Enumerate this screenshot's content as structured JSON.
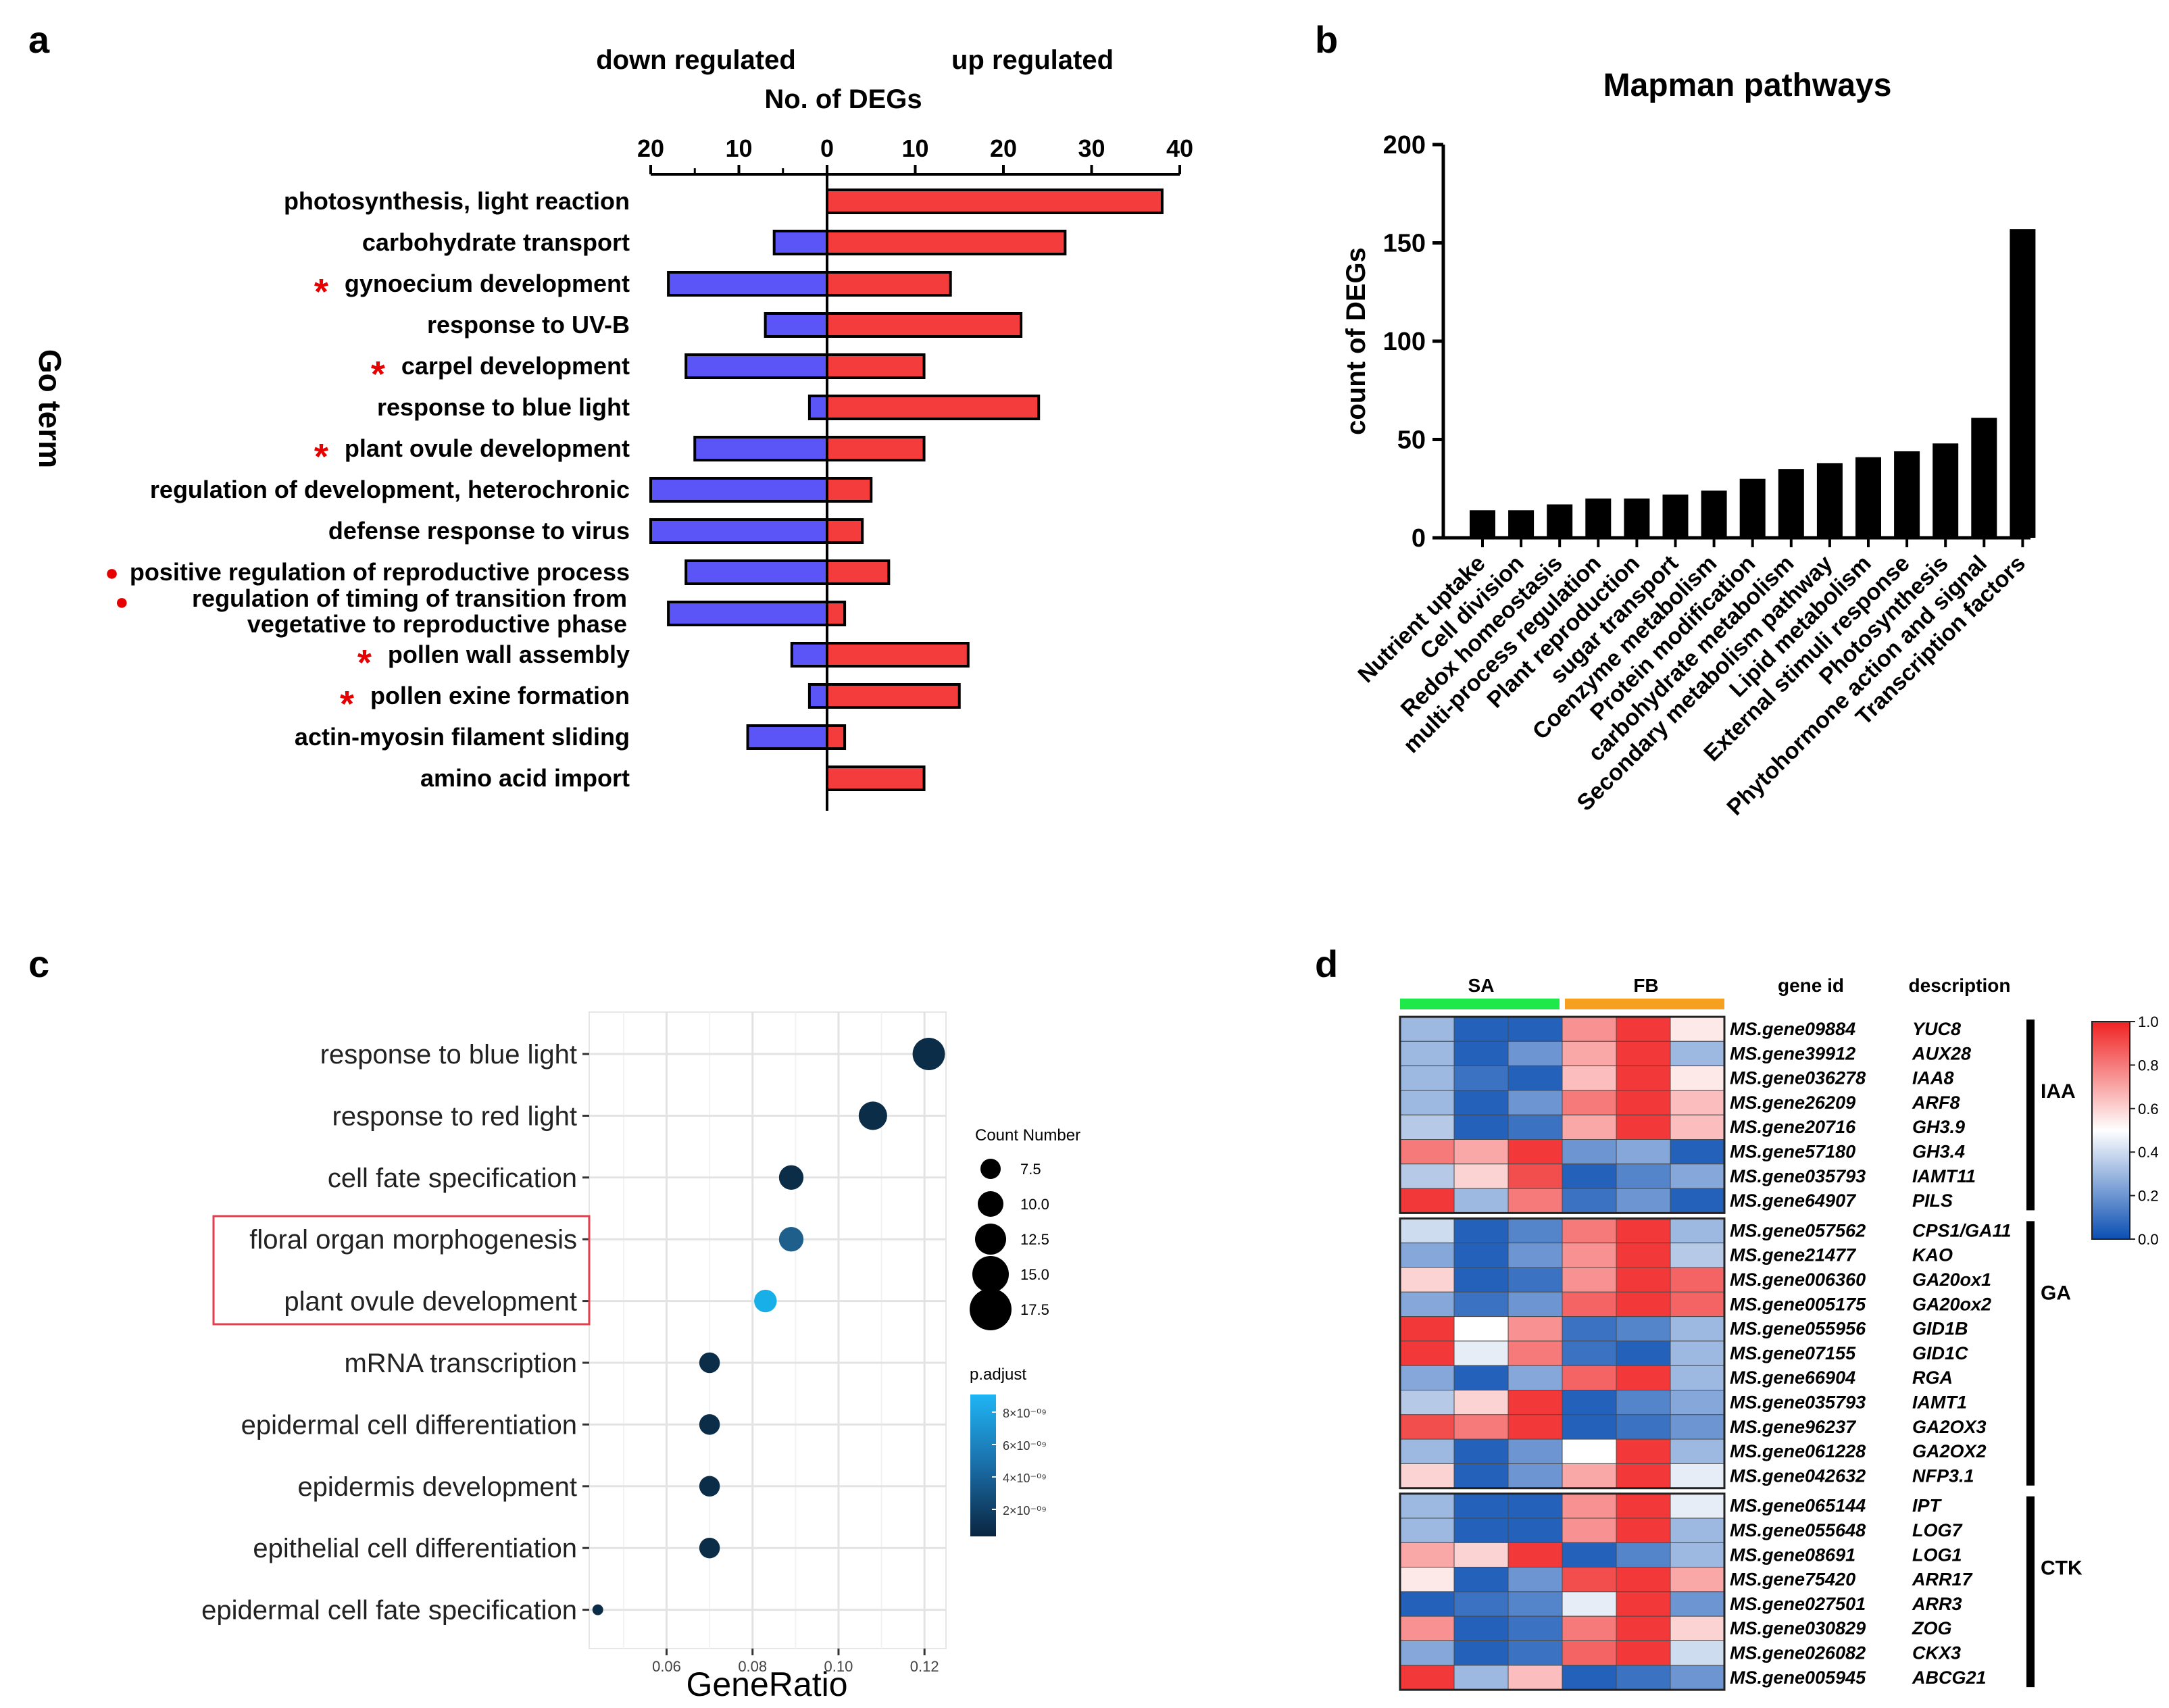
{
  "panel_labels": [
    "a",
    "b",
    "c",
    "d"
  ],
  "chart_data": [
    {
      "panel": "a",
      "type": "bar",
      "orientation": "horizontal-diverging",
      "title": "No. of DEGs",
      "left_heading": "down regulated",
      "right_heading": "up regulated",
      "ylabel": "Go term",
      "x_ticks_down": [
        "20",
        "10",
        "0"
      ],
      "x_ticks_up": [
        "10",
        "20",
        "30",
        "40"
      ],
      "xlim_down": [
        0,
        20
      ],
      "xlim_up": [
        0,
        40
      ],
      "colors": {
        "down": "#5b55f7",
        "up": "#f53c3c"
      },
      "categories": [
        {
          "label": "photosynthesis, light reaction",
          "marker": "",
          "down": 0,
          "up": 38
        },
        {
          "label": "carbohydrate transport",
          "marker": "",
          "down": 6,
          "up": 27
        },
        {
          "label": "gynoecium development",
          "marker": "*",
          "down": 18,
          "up": 14
        },
        {
          "label": "response to UV-B",
          "marker": "",
          "down": 7,
          "up": 22
        },
        {
          "label": "carpel development",
          "marker": "*",
          "down": 16,
          "up": 11
        },
        {
          "label": "response to blue light",
          "marker": "",
          "down": 2,
          "up": 24
        },
        {
          "label": "plant ovule development",
          "marker": "*",
          "down": 15,
          "up": 11
        },
        {
          "label": "regulation of development, heterochronic",
          "marker": "",
          "down": 20,
          "up": 5
        },
        {
          "label": "defense response to virus",
          "marker": "",
          "down": 20,
          "up": 4
        },
        {
          "label": "positive regulation of reproductive process",
          "marker": "●",
          "down": 16,
          "up": 7
        },
        {
          "label": "regulation of timing of transition from",
          "label_line2": "vegetative to reproductive phase",
          "marker": "●",
          "down": 18,
          "up": 2
        },
        {
          "label": "pollen wall assembly",
          "marker": "*",
          "down": 4,
          "up": 16
        },
        {
          "label": "pollen exine formation",
          "marker": "*",
          "down": 2,
          "up": 15
        },
        {
          "label": "actin-myosin filament sliding",
          "marker": "",
          "down": 9,
          "up": 2
        },
        {
          "label": "amino acid import",
          "marker": "",
          "down": 0,
          "up": 11
        }
      ]
    },
    {
      "panel": "b",
      "type": "bar",
      "title": "Mapman pathways",
      "ylabel": "count of DEGs",
      "xlabel": "",
      "ylim": [
        0,
        200
      ],
      "y_ticks": [
        "0",
        "50",
        "100",
        "150",
        "200"
      ],
      "bar_color": "#000000",
      "categories": [
        "Nutrient uptake",
        "Cell division",
        "Redox homeostasis",
        "multi-process regulation",
        "Plant reproduction",
        "sugar transport",
        "Coenzyme metabolism",
        "Protein modification",
        "carbohydrate metabolism",
        "Secondary metabolism pathway",
        "Lipid metabolism",
        "External stimuli response",
        "Photosynthesis",
        "Phytohormone action and signal",
        "Transcription factors"
      ],
      "values": [
        14,
        14,
        17,
        20,
        20,
        22,
        24,
        30,
        35,
        38,
        41,
        44,
        48,
        61,
        157
      ]
    },
    {
      "panel": "c",
      "type": "scatter",
      "xlabel": "GeneRatio",
      "x_ticks": [
        "0.06",
        "0.08",
        "0.10",
        "0.12"
      ],
      "xlim": [
        0.042,
        0.125
      ],
      "size_legend_title": "Count Number",
      "size_legend": [
        "7.5",
        "10.0",
        "12.5",
        "15.0",
        "17.5"
      ],
      "color_legend_title": "p.adjust",
      "color_legend_ticks": [
        "8×10⁻⁰⁹",
        "6×10⁻⁰⁹",
        "4×10⁻⁰⁹",
        "2×10⁻⁰⁹"
      ],
      "points": [
        {
          "term": "response to blue light",
          "gene_ratio": 0.121,
          "count": 18,
          "color": "#0c2d48",
          "highlight": false
        },
        {
          "term": "response to red light",
          "gene_ratio": 0.108,
          "count": 16,
          "color": "#0c2d48",
          "highlight": false
        },
        {
          "term": "cell fate specification",
          "gene_ratio": 0.089,
          "count": 14,
          "color": "#0c2d48",
          "highlight": false
        },
        {
          "term": "floral organ morphogenesis",
          "gene_ratio": 0.089,
          "count": 14,
          "color": "#1f5f8b",
          "highlight": true
        },
        {
          "term": "plant ovule development",
          "gene_ratio": 0.083,
          "count": 13,
          "color": "#18aee8",
          "highlight": true
        },
        {
          "term": "mRNA transcription",
          "gene_ratio": 0.07,
          "count": 12,
          "color": "#0c2d48",
          "highlight": false
        },
        {
          "term": "epidermal cell differentiation",
          "gene_ratio": 0.07,
          "count": 12,
          "color": "#0c2d48",
          "highlight": false
        },
        {
          "term": "epidermis development",
          "gene_ratio": 0.07,
          "count": 12,
          "color": "#0c2d48",
          "highlight": false
        },
        {
          "term": "epithelial cell differentiation",
          "gene_ratio": 0.07,
          "count": 12,
          "color": "#0c2d48",
          "highlight": false
        },
        {
          "term": "epidermal cell fate specification",
          "gene_ratio": 0.044,
          "count": 7,
          "color": "#0c2d48",
          "highlight": false
        }
      ]
    },
    {
      "panel": "d",
      "type": "heatmap",
      "groups": [
        {
          "label": "SA",
          "color": "#1ee84a"
        },
        {
          "label": "FB",
          "color": "#f5a020"
        }
      ],
      "gene_id_header": "gene id",
      "description_header": "description",
      "scale_ticks": [
        "1.0",
        "0.8",
        "0.6",
        "0.4",
        "0.2",
        "0.0"
      ],
      "low_color": "#0b4fb3",
      "mid_color": "#ffffff",
      "high_color": "#f02222",
      "blocks": [
        {
          "label": "IAA",
          "rows": [
            {
              "gene": "MS.gene09884",
              "desc": "YUC8",
              "values": [
                0.3,
                0.05,
                0.05,
                0.75,
                0.95,
                0.55
              ]
            },
            {
              "gene": "MS.gene39912",
              "desc": "AUX28",
              "values": [
                0.3,
                0.05,
                0.2,
                0.7,
                0.95,
                0.3
              ]
            },
            {
              "gene": "MS.gene036278",
              "desc": "IAA8",
              "values": [
                0.3,
                0.1,
                0.05,
                0.65,
                0.95,
                0.55
              ]
            },
            {
              "gene": "MS.gene26209",
              "desc": "ARF8",
              "values": [
                0.3,
                0.05,
                0.2,
                0.8,
                0.95,
                0.65
              ]
            },
            {
              "gene": "MS.gene20716",
              "desc": "GH3.9",
              "values": [
                0.35,
                0.05,
                0.1,
                0.7,
                0.95,
                0.65
              ]
            },
            {
              "gene": "MS.gene57180",
              "desc": "GH3.4",
              "values": [
                0.8,
                0.7,
                0.95,
                0.2,
                0.25,
                0.05
              ]
            },
            {
              "gene": "MS.gene035793",
              "desc": "IAMT11",
              "values": [
                0.35,
                0.6,
                0.9,
                0.05,
                0.15,
                0.25
              ]
            },
            {
              "gene": "MS.gene64907",
              "desc": "PILS",
              "values": [
                0.95,
                0.3,
                0.8,
                0.1,
                0.2,
                0.05
              ]
            }
          ]
        },
        {
          "label": "GA",
          "rows": [
            {
              "gene": "MS.gene057562",
              "desc": "CPS1/GA11",
              "values": [
                0.4,
                0.05,
                0.15,
                0.8,
                0.95,
                0.3
              ]
            },
            {
              "gene": "MS.gene21477",
              "desc": "KAO",
              "values": [
                0.25,
                0.05,
                0.2,
                0.75,
                0.95,
                0.35
              ]
            },
            {
              "gene": "MS.gene006360",
              "desc": "GA20ox1",
              "values": [
                0.6,
                0.05,
                0.1,
                0.75,
                0.95,
                0.85
              ]
            },
            {
              "gene": "MS.gene005175",
              "desc": "GA20ox2",
              "values": [
                0.25,
                0.1,
                0.2,
                0.85,
                0.95,
                0.85
              ]
            },
            {
              "gene": "MS.gene055956",
              "desc": "GID1B",
              "values": [
                0.95,
                0.5,
                0.75,
                0.1,
                0.15,
                0.3
              ]
            },
            {
              "gene": "MS.gene07155",
              "desc": "GID1C",
              "values": [
                0.95,
                0.45,
                0.8,
                0.1,
                0.05,
                0.3
              ]
            },
            {
              "gene": "MS.gene66904",
              "desc": "RGA",
              "values": [
                0.25,
                0.05,
                0.25,
                0.85,
                0.95,
                0.3
              ]
            },
            {
              "gene": "MS.gene035793",
              "desc": "IAMT1",
              "values": [
                0.35,
                0.6,
                0.95,
                0.05,
                0.15,
                0.25
              ]
            },
            {
              "gene": "MS.gene96237",
              "desc": "GA2OX3",
              "values": [
                0.9,
                0.8,
                0.95,
                0.05,
                0.1,
                0.2
              ]
            },
            {
              "gene": "MS.gene061228",
              "desc": "GA2OX2",
              "values": [
                0.3,
                0.05,
                0.2,
                0.5,
                0.95,
                0.3
              ]
            },
            {
              "gene": "MS.gene042632",
              "desc": "NFP3.1",
              "values": [
                0.6,
                0.05,
                0.2,
                0.7,
                0.95,
                0.45
              ]
            }
          ]
        },
        {
          "label": "CTK",
          "rows": [
            {
              "gene": "MS.gene065144",
              "desc": "IPT",
              "values": [
                0.3,
                0.05,
                0.05,
                0.75,
                0.95,
                0.45
              ]
            },
            {
              "gene": "MS.gene055648",
              "desc": "LOG7",
              "values": [
                0.3,
                0.05,
                0.05,
                0.75,
                0.95,
                0.3
              ]
            },
            {
              "gene": "MS.gene08691",
              "desc": "LOG1",
              "values": [
                0.7,
                0.6,
                0.95,
                0.05,
                0.15,
                0.3
              ]
            },
            {
              "gene": "MS.gene75420",
              "desc": "ARR17",
              "values": [
                0.55,
                0.05,
                0.2,
                0.9,
                0.95,
                0.7
              ]
            },
            {
              "gene": "MS.gene027501",
              "desc": "ARR3",
              "values": [
                0.05,
                0.1,
                0.15,
                0.45,
                0.95,
                0.2
              ]
            },
            {
              "gene": "MS.gene030829",
              "desc": "ZOG",
              "values": [
                0.75,
                0.05,
                0.1,
                0.8,
                0.95,
                0.6
              ]
            },
            {
              "gene": "MS.gene026082",
              "desc": "CKX3",
              "values": [
                0.25,
                0.05,
                0.1,
                0.85,
                0.95,
                0.4
              ]
            },
            {
              "gene": "MS.gene005945",
              "desc": "ABCG21",
              "values": [
                0.95,
                0.3,
                0.65,
                0.05,
                0.1,
                0.2
              ]
            }
          ]
        }
      ]
    }
  ]
}
